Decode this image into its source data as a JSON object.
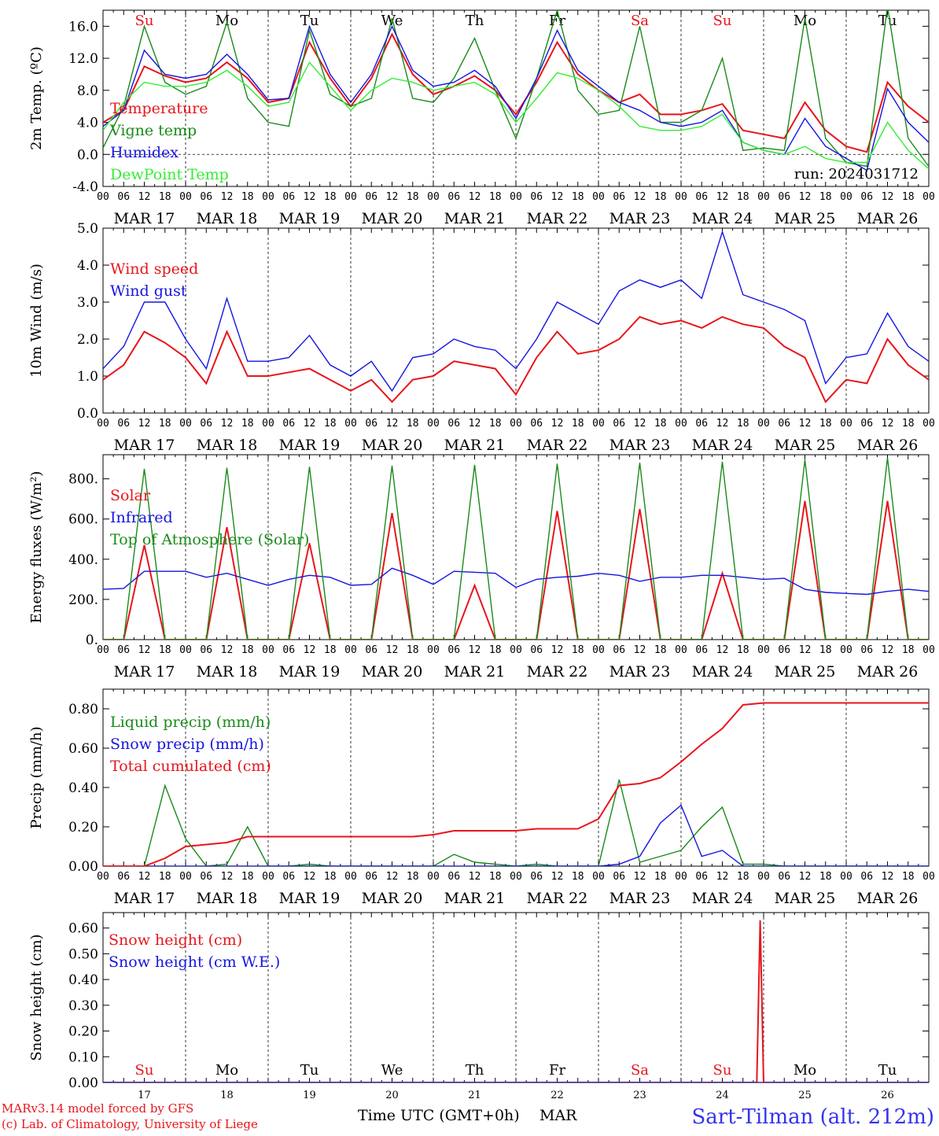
{
  "colors": {
    "red": "#e8151b",
    "green": "#1a8a1a",
    "blue": "#1515e0",
    "lightgreen": "#33ee33",
    "purple": "#8a1a8a",
    "footer_red": "#e8151b",
    "station_blue": "#3333ee"
  },
  "days": [
    "Su",
    "Mo",
    "Tu",
    "We",
    "Th",
    "Fr",
    "Sa",
    "Su",
    "Mo",
    "Tu"
  ],
  "day_colors": [
    "red",
    "black",
    "black",
    "black",
    "black",
    "black",
    "red",
    "red",
    "black",
    "black"
  ],
  "date_labels": [
    "MAR 17",
    "MAR 18",
    "MAR 19",
    "MAR 20",
    "MAR 21",
    "MAR 22",
    "MAR 23",
    "MAR 24",
    "MAR 25",
    "MAR 26"
  ],
  "day_numbers": [
    "17",
    "18",
    "19",
    "20",
    "21",
    "22",
    "23",
    "24",
    "25",
    "26"
  ],
  "hour_ticks": [
    "00",
    "06",
    "12",
    "18"
  ],
  "footer": {
    "model": "MARv3.14 model forced by GFS",
    "lab": "(c) Lab. of Climatology, University of Liege",
    "xlabel": "Time UTC (GMT+0h)",
    "month": "MAR",
    "station": "Sart-Tilman (alt. 212m)"
  },
  "chart_data": [
    {
      "type": "line",
      "ylabel": "2m Temp. (ºC)",
      "ylim": [
        -4,
        18
      ],
      "yticks": [
        "16.0",
        "12.0",
        "8.0",
        "4.0",
        "0.0",
        "-4.0"
      ],
      "annotation": "run: 2024031712",
      "x_hours": [
        0,
        6,
        12,
        18,
        24,
        30,
        36,
        42,
        48,
        54,
        60,
        66,
        72,
        78,
        84,
        90,
        96,
        102,
        108,
        114,
        120,
        126,
        132,
        138,
        144,
        150,
        156,
        162,
        168,
        174,
        180,
        186,
        192,
        198,
        204,
        210,
        216,
        222,
        228,
        234,
        240
      ],
      "series": [
        {
          "name": "Temperature",
          "color": "red",
          "values": [
            4.0,
            5.5,
            11.0,
            9.8,
            9.0,
            9.5,
            11.5,
            9.5,
            6.5,
            7.0,
            14.0,
            9.5,
            6.0,
            9.5,
            15.0,
            10.0,
            7.5,
            8.5,
            9.8,
            8.0,
            5.0,
            9.0,
            14.0,
            10.0,
            8.0,
            6.5,
            7.5,
            5.0,
            5.0,
            5.5,
            6.3,
            3.0,
            2.5,
            2.0,
            6.5,
            3.0,
            1.0,
            0.3,
            9.0,
            6.0,
            4.0
          ]
        },
        {
          "name": "Vigne temp",
          "color": "green",
          "values": [
            0.8,
            6.0,
            16.0,
            9.0,
            7.5,
            8.5,
            16.5,
            7.0,
            4.0,
            3.5,
            15.5,
            7.5,
            6.0,
            7.0,
            17.0,
            7.0,
            6.5,
            9.5,
            14.5,
            8.0,
            2.0,
            9.5,
            18.0,
            8.0,
            5.0,
            5.5,
            16.0,
            4.0,
            4.0,
            5.5,
            12.0,
            0.5,
            0.8,
            0.5,
            17.0,
            2.0,
            -1.0,
            -1.5,
            18.5,
            2.0,
            -1.5
          ]
        },
        {
          "name": "Humidex",
          "color": "blue",
          "values": [
            3.5,
            5.5,
            13.0,
            10.0,
            9.5,
            10.0,
            12.5,
            10.0,
            6.8,
            7.0,
            16.0,
            10.0,
            6.5,
            10.0,
            16.0,
            10.5,
            8.5,
            9.0,
            10.5,
            8.5,
            4.5,
            9.5,
            15.5,
            10.5,
            8.5,
            6.5,
            5.5,
            4.0,
            3.5,
            4.0,
            5.5,
            1.5,
            0.5,
            0.0,
            4.5,
            1.0,
            -0.5,
            -2.0,
            8.2,
            4.0,
            1.5
          ]
        },
        {
          "name": "DewPoint Temp",
          "color": "lightgreen",
          "values": [
            3.0,
            6.5,
            9.0,
            8.5,
            8.5,
            9.0,
            10.5,
            8.5,
            6.0,
            6.5,
            11.5,
            8.5,
            5.5,
            8.0,
            9.5,
            9.0,
            8.0,
            8.5,
            9.0,
            7.5,
            4.0,
            7.0,
            10.2,
            9.5,
            8.0,
            6.0,
            3.5,
            3.0,
            3.0,
            3.5,
            5.0,
            1.5,
            0.5,
            0.0,
            1.0,
            -0.5,
            -1.0,
            -1.0,
            4.0,
            0.5,
            -1.8
          ]
        }
      ]
    },
    {
      "type": "line",
      "ylabel": "10m Wind (m/s)",
      "ylim": [
        0,
        5
      ],
      "yticks": [
        "5.0",
        "4.0",
        "3.0",
        "2.0",
        "1.0",
        "0.0"
      ],
      "x_hours": [
        0,
        6,
        12,
        18,
        24,
        30,
        36,
        42,
        48,
        54,
        60,
        66,
        72,
        78,
        84,
        90,
        96,
        102,
        108,
        114,
        120,
        126,
        132,
        138,
        144,
        150,
        156,
        162,
        168,
        174,
        180,
        186,
        192,
        198,
        204,
        210,
        216,
        222,
        228,
        234,
        240
      ],
      "series": [
        {
          "name": "Wind speed",
          "color": "red",
          "values": [
            0.9,
            1.3,
            2.2,
            1.9,
            1.5,
            0.8,
            2.2,
            1.0,
            1.0,
            1.1,
            1.2,
            0.9,
            0.6,
            0.9,
            0.3,
            0.9,
            1.0,
            1.4,
            1.3,
            1.2,
            0.5,
            1.5,
            2.2,
            1.6,
            1.7,
            2.0,
            2.6,
            2.4,
            2.5,
            2.3,
            2.6,
            2.4,
            2.3,
            1.8,
            1.5,
            0.3,
            0.9,
            0.8,
            2.0,
            1.3,
            0.9
          ]
        },
        {
          "name": "Wind gust",
          "color": "blue",
          "values": [
            1.2,
            1.8,
            3.0,
            3.0,
            2.0,
            1.2,
            3.1,
            1.4,
            1.4,
            1.5,
            2.1,
            1.3,
            1.0,
            1.4,
            0.6,
            1.5,
            1.6,
            2.0,
            1.8,
            1.7,
            1.2,
            2.0,
            3.0,
            2.7,
            2.4,
            3.3,
            3.6,
            3.4,
            3.6,
            3.1,
            4.9,
            3.2,
            3.0,
            2.8,
            2.5,
            0.8,
            1.5,
            1.6,
            2.7,
            1.8,
            1.4
          ]
        }
      ]
    },
    {
      "type": "line",
      "ylabel": "Energy fluxes (W/m²)",
      "ylim": [
        0,
        920
      ],
      "yticks": [
        "800.",
        "600.",
        "400.",
        "200.",
        "0."
      ],
      "x_hours": [
        0,
        6,
        12,
        18,
        24,
        30,
        36,
        42,
        48,
        54,
        60,
        66,
        72,
        78,
        84,
        90,
        96,
        102,
        108,
        114,
        120,
        126,
        132,
        138,
        144,
        150,
        156,
        162,
        168,
        174,
        180,
        186,
        192,
        198,
        204,
        210,
        216,
        222,
        228,
        234,
        240
      ],
      "series": [
        {
          "name": "Solar",
          "color": "red",
          "values": [
            0,
            0,
            470,
            0,
            0,
            0,
            560,
            0,
            0,
            0,
            480,
            0,
            0,
            0,
            630,
            0,
            0,
            0,
            270,
            0,
            0,
            0,
            640,
            0,
            0,
            0,
            650,
            0,
            0,
            0,
            330,
            0,
            0,
            0,
            690,
            0,
            0,
            0,
            690,
            0,
            0
          ]
        },
        {
          "name": "Infrared",
          "color": "blue",
          "values": [
            250,
            255,
            340,
            340,
            340,
            310,
            330,
            300,
            270,
            300,
            320,
            310,
            270,
            275,
            355,
            320,
            275,
            340,
            335,
            330,
            260,
            300,
            310,
            315,
            330,
            320,
            290,
            310,
            310,
            320,
            320,
            310,
            300,
            305,
            250,
            235,
            230,
            225,
            240,
            250,
            240
          ]
        },
        {
          "name": "Top of Atmosphere (Solar)",
          "color": "green",
          "values": [
            0,
            0,
            850,
            0,
            0,
            0,
            855,
            0,
            0,
            0,
            860,
            0,
            0,
            0,
            865,
            0,
            0,
            0,
            870,
            0,
            0,
            0,
            875,
            0,
            0,
            0,
            880,
            0,
            0,
            0,
            885,
            0,
            0,
            0,
            895,
            0,
            0,
            0,
            905,
            0,
            0
          ]
        }
      ]
    },
    {
      "type": "line",
      "ylabel": "Precip (mm/h)",
      "ylim": [
        0,
        0.9
      ],
      "yticks": [
        "0.80",
        "0.60",
        "0.40",
        "0.20",
        "0.00"
      ],
      "x_hours": [
        0,
        6,
        12,
        18,
        24,
        30,
        36,
        42,
        48,
        54,
        60,
        66,
        72,
        78,
        84,
        90,
        96,
        102,
        108,
        114,
        120,
        126,
        132,
        138,
        144,
        150,
        156,
        162,
        168,
        174,
        180,
        186,
        192,
        198,
        204,
        210,
        216,
        222,
        228,
        234,
        240
      ],
      "series": [
        {
          "name": "Liquid precip (mm/h)",
          "color": "green",
          "values": [
            0,
            0,
            0,
            0.41,
            0.14,
            0,
            0.01,
            0.2,
            0,
            0,
            0.01,
            0,
            0,
            0,
            0,
            0,
            0,
            0.06,
            0.02,
            0.01,
            0,
            0.01,
            0,
            0,
            0,
            0.44,
            0.02,
            0.05,
            0.08,
            0.2,
            0.3,
            0.01,
            0.01,
            0,
            0,
            0,
            0,
            0,
            0,
            0,
            0
          ]
        },
        {
          "name": "Snow precip (mm/h)",
          "color": "blue",
          "values": [
            0,
            0,
            0,
            0,
            0,
            0,
            0,
            0,
            0,
            0,
            0,
            0,
            0,
            0,
            0,
            0,
            0,
            0,
            0,
            0,
            0,
            0,
            0,
            0,
            0,
            0.01,
            0.05,
            0.22,
            0.31,
            0.05,
            0.08,
            0,
            0,
            0,
            0,
            0,
            0,
            0,
            0,
            0,
            0
          ]
        },
        {
          "name": "Total cumulated (cm)",
          "color": "red",
          "values": [
            0,
            0,
            0,
            0.04,
            0.1,
            0.11,
            0.12,
            0.15,
            0.15,
            0.15,
            0.15,
            0.15,
            0.15,
            0.15,
            0.15,
            0.15,
            0.16,
            0.18,
            0.18,
            0.18,
            0.18,
            0.19,
            0.19,
            0.19,
            0.24,
            0.41,
            0.42,
            0.45,
            0.53,
            0.62,
            0.7,
            0.82,
            0.83,
            0.83,
            0.83,
            0.83,
            0.83,
            0.83,
            0.83,
            0.83,
            0.83
          ]
        }
      ]
    },
    {
      "type": "line",
      "ylabel": "Snow height (cm)",
      "ylim": [
        0,
        0.66
      ],
      "yticks": [
        "0.60",
        "0.50",
        "0.40",
        "0.30",
        "0.20",
        "0.10",
        "0.00"
      ],
      "x_hours": [
        0,
        24,
        48,
        72,
        96,
        120,
        144,
        168,
        190,
        191,
        192,
        193,
        194,
        216,
        240
      ],
      "series": [
        {
          "name": "Snow height (cm)",
          "color": "red",
          "values": [
            0,
            0,
            0,
            0,
            0,
            0,
            0,
            0,
            0,
            0.63,
            0,
            0,
            0,
            0,
            0
          ]
        },
        {
          "name": "Snow height (cm W.E.)",
          "color": "blue",
          "values": [
            0,
            0,
            0,
            0,
            0,
            0,
            0,
            0,
            0,
            0,
            0,
            0,
            0,
            0,
            0
          ]
        }
      ]
    }
  ]
}
